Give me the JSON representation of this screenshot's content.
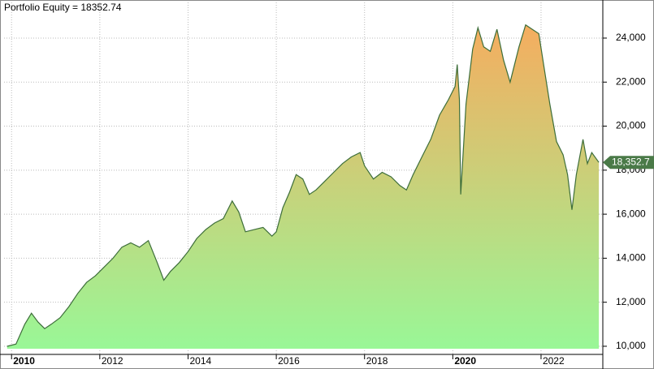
{
  "chart_data": {
    "type": "area",
    "title": "Portfolio Equity = 18352.74",
    "x": [
      2009.9,
      2010.1,
      2010.3,
      2010.45,
      2010.6,
      2010.75,
      2010.9,
      2011.1,
      2011.3,
      2011.5,
      2011.7,
      2011.9,
      2012.1,
      2012.3,
      2012.5,
      2012.7,
      2012.9,
      2013.1,
      2013.3,
      2013.45,
      2013.6,
      2013.8,
      2014.0,
      2014.2,
      2014.4,
      2014.6,
      2014.8,
      2015.0,
      2015.15,
      2015.3,
      2015.5,
      2015.7,
      2015.9,
      2016.0,
      2016.15,
      2016.3,
      2016.45,
      2016.6,
      2016.75,
      2016.9,
      2017.1,
      2017.3,
      2017.5,
      2017.7,
      2017.9,
      2018.0,
      2018.2,
      2018.4,
      2018.6,
      2018.8,
      2018.95,
      2019.1,
      2019.3,
      2019.5,
      2019.7,
      2019.9,
      2020.05,
      2020.1,
      2020.15,
      2020.18,
      2020.3,
      2020.45,
      2020.57,
      2020.7,
      2020.85,
      2021.0,
      2021.15,
      2021.3,
      2021.5,
      2021.65,
      2021.8,
      2021.95,
      2022.05,
      2022.2,
      2022.35,
      2022.5,
      2022.6,
      2022.7,
      2022.8,
      2022.95,
      2023.05,
      2023.15,
      2023.31
    ],
    "values": [
      10000,
      10100,
      11000,
      11500,
      11100,
      10800,
      11000,
      11300,
      11800,
      12400,
      12900,
      13200,
      13600,
      14000,
      14500,
      14700,
      14500,
      14800,
      13800,
      13000,
      13400,
      13800,
      14300,
      14900,
      15300,
      15600,
      15800,
      16600,
      16100,
      15200,
      15300,
      15400,
      15000,
      15200,
      16300,
      17000,
      17800,
      17600,
      16900,
      17100,
      17500,
      17900,
      18300,
      18600,
      18800,
      18200,
      17600,
      17900,
      17700,
      17300,
      17100,
      17800,
      18600,
      19400,
      20500,
      21200,
      21800,
      22800,
      21200,
      16900,
      21000,
      23500,
      24470,
      23600,
      23400,
      24400,
      23000,
      22000,
      23600,
      24600,
      24400,
      24200,
      22900,
      21000,
      19300,
      18700,
      17800,
      16200,
      17800,
      19400,
      18300,
      18800,
      18352.74
    ],
    "color": "#3d6e3a",
    "fill_top": "#f5ad5f",
    "fill_bottom": "#99f797",
    "last_value": 18352.74,
    "last_value_label": "18,352.7",
    "last_value_color": "#4a7a48",
    "xlim": [
      2009.83,
      2023.4
    ],
    "xticks": [
      2010,
      2012,
      2014,
      2016,
      2018,
      2020,
      2022
    ],
    "ylim": [
      9630,
      25620
    ],
    "yticks": [
      {
        "value": 10000,
        "label": "10,000"
      },
      {
        "value": 12000,
        "label": "12,000"
      },
      {
        "value": 14000,
        "label": "14,000"
      },
      {
        "value": 16000,
        "label": "16,000"
      },
      {
        "value": 18000,
        "label": "18,000"
      },
      {
        "value": 20000,
        "label": "20,000"
      },
      {
        "value": 22000,
        "label": "22,000"
      },
      {
        "value": 24000,
        "label": "24,000"
      }
    ],
    "grid": true
  }
}
